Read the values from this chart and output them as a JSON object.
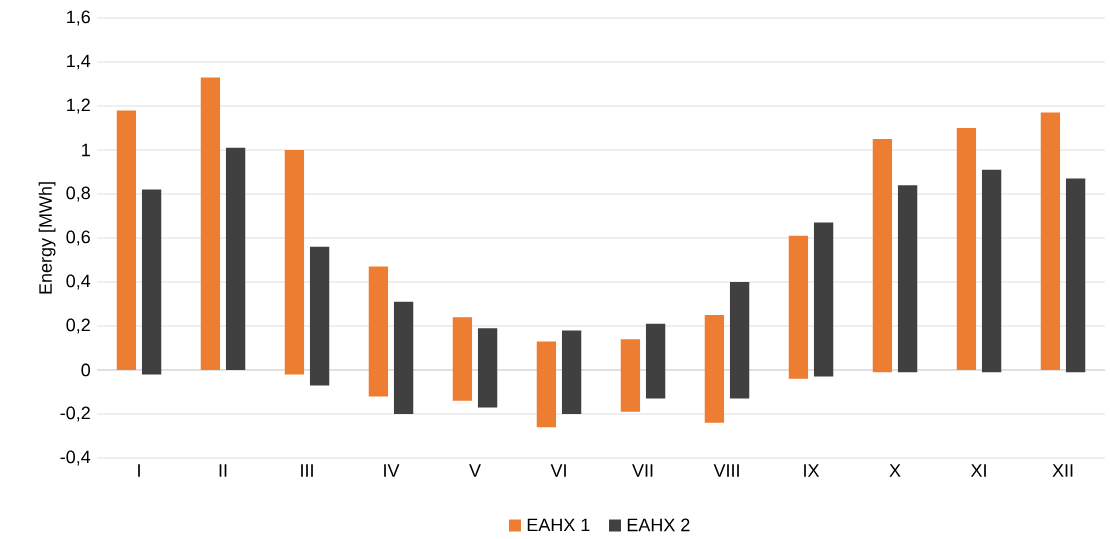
{
  "chart_data": {
    "type": "bar",
    "ylabel": "Energy [MWh]",
    "categories": [
      "I",
      "II",
      "III",
      "IV",
      "V",
      "VI",
      "VII",
      "VIII",
      "IX",
      "X",
      "XI",
      "XII"
    ],
    "series": [
      {
        "name": "EAHX 1",
        "color": "#ed7d31",
        "base": [
          0,
          0,
          -0.02,
          -0.12,
          -0.14,
          -0.26,
          -0.19,
          -0.24,
          -0.04,
          -0.01,
          0,
          0
        ],
        "values": [
          1.18,
          1.33,
          1.02,
          0.59,
          0.38,
          0.39,
          0.33,
          0.49,
          0.65,
          1.06,
          1.1,
          1.17
        ]
      },
      {
        "name": "EAHX 2",
        "color": "#404040",
        "base": [
          -0.02,
          0,
          -0.07,
          -0.2,
          -0.17,
          -0.2,
          -0.13,
          -0.13,
          -0.03,
          -0.01,
          -0.01,
          -0.01
        ],
        "values": [
          0.84,
          1.01,
          0.63,
          0.51,
          0.36,
          0.38,
          0.34,
          0.53,
          0.7,
          0.85,
          0.92,
          0.88
        ]
      }
    ],
    "ylim": [
      -0.4,
      1.6
    ],
    "yticks": [
      {
        "value": -0.4,
        "label": "-0,4"
      },
      {
        "value": -0.2,
        "label": "-0,2"
      },
      0,
      {
        "value": 0.2,
        "label": "0,2"
      },
      {
        "value": 0.4,
        "label": "0,4"
      },
      {
        "value": 0.6,
        "label": "0,6"
      },
      {
        "value": 0.8,
        "label": "0,8"
      },
      1,
      {
        "value": 1.2,
        "label": "1,2"
      },
      {
        "value": 1.4,
        "label": "1,4"
      },
      {
        "value": 1.6,
        "label": "1,6"
      }
    ],
    "grid": "y",
    "legend": "bottom"
  }
}
